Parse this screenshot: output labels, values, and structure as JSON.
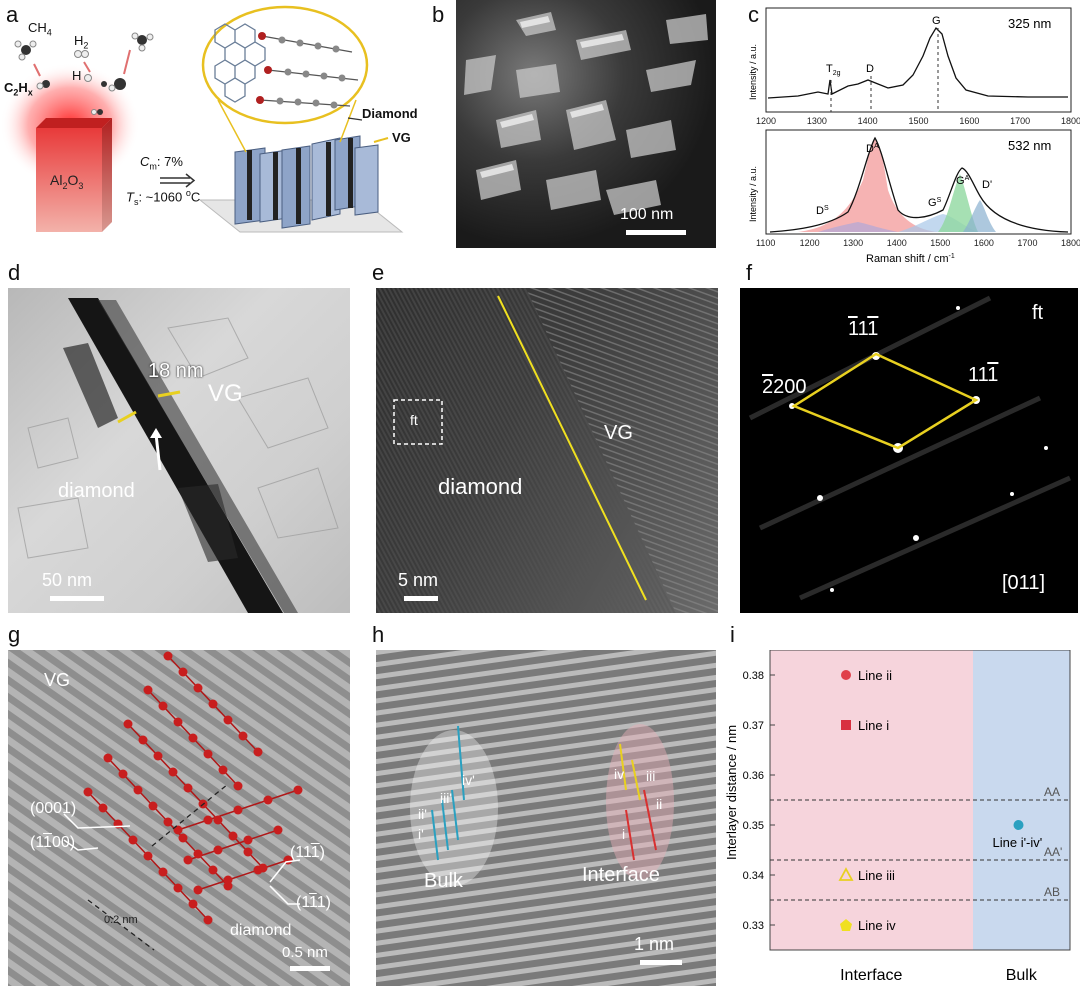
{
  "panel_labels": {
    "a": "a",
    "b": "b",
    "c": "c",
    "d": "d",
    "e": "e",
    "f": "f",
    "g": "g",
    "h": "h",
    "i": "i"
  },
  "panel_a": {
    "ch4": "CH",
    "ch4_sub": "4",
    "h2": "H",
    "h2_sub": "2",
    "h_radical": "H",
    "c2hx": "C",
    "c2hx_sub": "2",
    "c2hx_h": "H",
    "c2hx_x": "x",
    "substrate": "Al",
    "substrate_sub1": "2",
    "substrate_o": "O",
    "substrate_sub2": "3",
    "cm_label": "C",
    "cm_sub": "m",
    "cm_value": ": 7%",
    "ts_label": "T",
    "ts_sub": "s",
    "ts_value": ": ~1060 ",
    "ts_unit": "C",
    "ts_deg": "o",
    "diamond_label": "Diamond",
    "vg_label": "VG"
  },
  "panel_b": {
    "scale": "100 nm"
  },
  "panel_c": {
    "top": {
      "wavelength": "325 nm",
      "ylabel": "Intensity / a.u.",
      "peak_t": "T",
      "peak_t_sub": "2g",
      "peak_d": "D",
      "peak_g": "G",
      "ticks": [
        "1200",
        "1300",
        "1400",
        "1500",
        "1600",
        "1700",
        "1800"
      ]
    },
    "bottom": {
      "wavelength": "532 nm",
      "ylabel": "Intensity / a.u.",
      "xlabel": "Raman shift / cm",
      "xlabel_sup": "-1",
      "peak_da": "D",
      "peak_da_sup": "A",
      "peak_ds": "D",
      "peak_ds_sup": "S",
      "peak_gs": "G",
      "peak_gs_sup": "S",
      "peak_ga": "G",
      "peak_ga_sup": "A",
      "peak_dprime": "D'",
      "ticks": [
        "1100",
        "1200",
        "1300",
        "1400",
        "1500",
        "1600",
        "1700",
        "1800"
      ]
    }
  },
  "panel_d": {
    "thickness": "18 nm",
    "vg": "VG",
    "diamond": "diamond",
    "scale": "50 nm"
  },
  "panel_e": {
    "ft": "ft",
    "vg": "VG",
    "diamond": "diamond",
    "scale": "5 nm"
  },
  "panel_f": {
    "ft": "ft",
    "spot1": "1",
    "spot1b": "1",
    "spot1c": "1",
    "spot2": "11",
    "spot2b": "1",
    "spot3": "200",
    "spot3b": "2",
    "zone": "[011]"
  },
  "panel_g": {
    "vg": "VG",
    "plane1": "(0001)",
    "plane2a": "(1",
    "plane2b": "1",
    "plane2c": "00)",
    "plane3a": "(11",
    "plane3b": "1",
    "plane3c": ")",
    "plane4a": "(1",
    "plane4b": "1",
    "plane4c": "1)",
    "spacing": "0.2 nm",
    "diamond": "diamond",
    "scale": "0.5 nm"
  },
  "panel_h": {
    "bulk": "Bulk",
    "interface": "Interface",
    "scale": "1 nm",
    "bulk_lines": [
      "i'",
      "ii'",
      "iii'",
      "iv'"
    ],
    "int_lines": [
      "i",
      "ii",
      "iii",
      "iv"
    ]
  },
  "chart_data": {
    "type": "scatter",
    "ylabel": "Interlayer distance / nm",
    "ylim": [
      0.325,
      0.385
    ],
    "yticks": [
      "0.33",
      "0.34",
      "0.35",
      "0.36",
      "0.37",
      "0.38"
    ],
    "categories": [
      "Interface",
      "Bulk"
    ],
    "series": [
      {
        "name": "Line ii",
        "category": "Interface",
        "value": 0.38,
        "marker": "circle",
        "color": "#e0404a"
      },
      {
        "name": "Line i",
        "category": "Interface",
        "value": 0.37,
        "marker": "square",
        "color": "#d83040"
      },
      {
        "name": "Line iii",
        "category": "Interface",
        "value": 0.34,
        "marker": "triangle",
        "color": "#e8d020"
      },
      {
        "name": "Line iv",
        "category": "Interface",
        "value": 0.33,
        "marker": "pentagon",
        "color": "#f0e020"
      },
      {
        "name": "Line i'-iv'",
        "category": "Bulk",
        "value": 0.35,
        "marker": "circle",
        "color": "#2aa0c0"
      }
    ],
    "reference_lines": [
      {
        "name": "AA",
        "value": 0.355
      },
      {
        "name": "AA'",
        "value": 0.343
      },
      {
        "name": "AB",
        "value": 0.335
      }
    ],
    "region_colors": {
      "Interface": "#f6d4dc",
      "Bulk": "#c9d9ee"
    }
  }
}
